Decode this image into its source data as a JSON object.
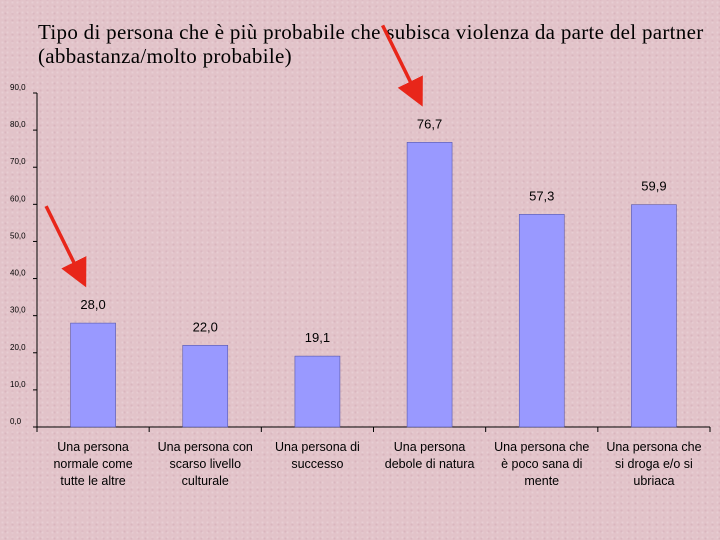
{
  "title": "Tipo di persona che è più probabile che subisca violenza da parte del partner (abbastanza/molto probabile)",
  "colors": {
    "bar": "#9999ff",
    "bar_edge": "#5555aa",
    "arrow": "#e8261a"
  },
  "chart_data": {
    "type": "bar",
    "title": "Tipo di persona che è più probabile che subisca violenza da parte del partner (abbastanza/molto probabile)",
    "categories": [
      [
        "Una persona",
        "normale come",
        "tutte le altre"
      ],
      [
        "Una persona con",
        "scarso livello",
        "culturale"
      ],
      [
        "Una persona di",
        "successo"
      ],
      [
        "Una persona",
        "debole di natura"
      ],
      [
        "Una persona che",
        "è poco sana di",
        "mente"
      ],
      [
        "Una persona che",
        "si droga e/o si",
        "ubriaca"
      ]
    ],
    "values": [
      28.0,
      22.0,
      19.1,
      76.7,
      57.3,
      59.9
    ],
    "value_labels": [
      "28,0",
      "22,0",
      "19,1",
      "76,7",
      "57,3",
      "59,9"
    ],
    "ylim": [
      0,
      90
    ],
    "yticks": [
      "0,0",
      "10,0",
      "20,0",
      "30,0",
      "40,0",
      "50,0",
      "60,0",
      "70,0",
      "80,0",
      "90,0"
    ],
    "xlabel": "",
    "ylabel": "",
    "grid": false,
    "legend": "none",
    "annotations": [
      {
        "type": "arrow",
        "points_to_category": 0
      },
      {
        "type": "arrow",
        "points_to_category": 3
      }
    ]
  }
}
